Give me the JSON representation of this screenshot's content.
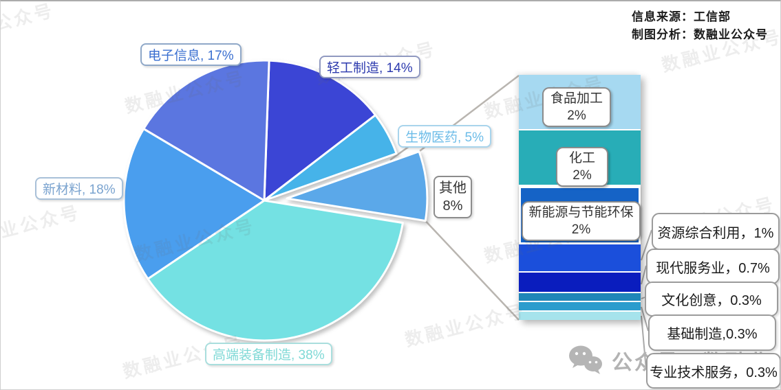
{
  "header": {
    "source_line1": "信息来源：工信部",
    "source_line2": "制图分析：数融业公众号"
  },
  "watermark": {
    "text": "数融业公众号"
  },
  "footer": {
    "account_label": "公众号：数融业",
    "icon": "wechat-icon"
  },
  "chart_data": {
    "type": "pie",
    "subtype": "bar-of-pie",
    "title": "",
    "unit": "%",
    "pie": {
      "start_angle_deg": 2,
      "slices": [
        {
          "name": "轻工制造",
          "value": 14,
          "display": "轻工制造, 14%",
          "color": "#3b45d5",
          "label_color": "#2c3aae",
          "label_border": "#9099c0"
        },
        {
          "name": "生物医药",
          "value": 5,
          "display": "生物医药, 5%",
          "color": "#46b3e9",
          "label_color": "#6cbce8",
          "label_border": "#a8d4ec"
        },
        {
          "name": "其他",
          "value": 8,
          "display_name": "其他",
          "display_value": "8%",
          "color": "#5ba8e9",
          "label_color": "#333333",
          "label_border": "#8c8c8c",
          "exploded": true
        },
        {
          "name": "高端装备制造",
          "value": 38,
          "display": "高端装备制造, 38%",
          "color": "#74e1e3",
          "label_color": "#7fd9d6",
          "label_border": "#a9dedd"
        },
        {
          "name": "新材料",
          "value": 18,
          "display": "新材料, 18%",
          "color": "#4a9eee",
          "label_color": "#7aa3cf",
          "label_border": "#a8c0d8"
        },
        {
          "name": "电子信息",
          "value": 17,
          "display": "电子信息, 17%",
          "color": "#5b76e0",
          "label_color": "#3a6fd0",
          "label_border": "#8fa8c8"
        }
      ]
    },
    "bar": {
      "represents": "其他",
      "segments": [
        {
          "name": "食品加工",
          "value": 2,
          "display_name": "食品加工",
          "display_value": "2%",
          "color": "#a6d9f1"
        },
        {
          "name": "化工",
          "value": 2,
          "display_name": "化工",
          "display_value": "2%",
          "color": "#28adb7"
        },
        {
          "name": "新能源与节能环保",
          "value": 2,
          "display_name": "新能源与节能环保",
          "display_value": "2%",
          "color": "#1563c6",
          "highlighted": true
        },
        {
          "name": "资源综合利用",
          "value": 1,
          "display": "资源综合利用，1%",
          "color": "#1b4fdb"
        },
        {
          "name": "现代服务业",
          "value": 0.7,
          "display": "现代服务业，0.7%",
          "color": "#0a1dbe"
        },
        {
          "name": "文化创意",
          "value": 0.3,
          "display": "文化创意，0.3%",
          "color": "#1f86b8"
        },
        {
          "name": "基础制造",
          "value": 0.3,
          "display": "基础制造,0.3%",
          "color": "#2b9ccd"
        },
        {
          "name": "专业技术服务",
          "value": 0.3,
          "display": "专业技术服务，0.3%",
          "color": "#a6e3ec"
        }
      ]
    }
  }
}
